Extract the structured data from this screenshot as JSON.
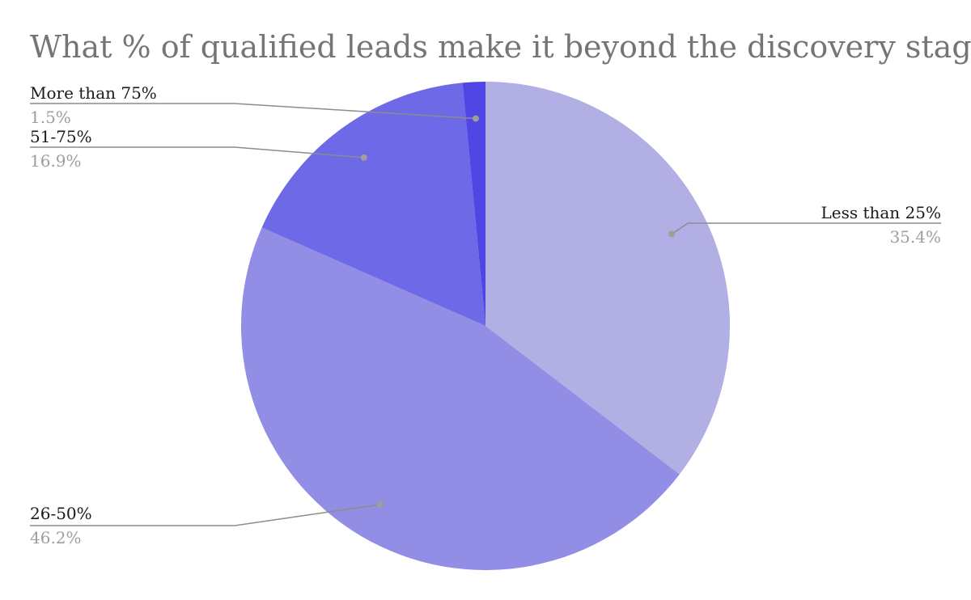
{
  "chart_data": {
    "type": "pie",
    "title": "What % of qualified leads make it beyond the discovery stage?",
    "slices": [
      {
        "label": "Less than 25%",
        "value": 35.4,
        "value_label": "35.4%",
        "color": "#b1afe3"
      },
      {
        "label": "26-50%",
        "value": 46.2,
        "value_label": "46.2%",
        "color": "#928de5"
      },
      {
        "label": "51-75%",
        "value": 16.9,
        "value_label": "16.9%",
        "color": "#6e69e7"
      },
      {
        "label": "More than 75%",
        "value": 1.5,
        "value_label": "1.5%",
        "color": "#4f46e5"
      }
    ],
    "start": "12 o'clock",
    "direction": "clockwise"
  }
}
